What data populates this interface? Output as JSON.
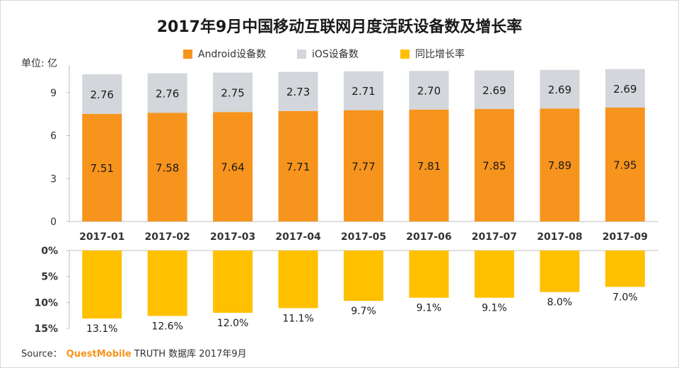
{
  "title": "2017年9月中国移动互联网月度活跃设备数及增长率",
  "unit_label": "单位: 亿",
  "legend": [
    {
      "label": "Android设备数",
      "color": "#f7941d"
    },
    {
      "label": "iOS设备数",
      "color": "#d3d6db"
    },
    {
      "label": "同比增长率",
      "color": "#ffc000"
    }
  ],
  "source": {
    "prefix": "Source：",
    "brand": "QuestMobile",
    "suffix": "TRUTH 数据库 2017年9月"
  },
  "chart_data": [
    {
      "type": "bar",
      "stacked": true,
      "categories": [
        "2017-01",
        "2017-02",
        "2017-03",
        "2017-04",
        "2017-05",
        "2017-06",
        "2017-07",
        "2017-08",
        "2017-09"
      ],
      "series": [
        {
          "name": "Android设备数",
          "color": "#f7941d",
          "values": [
            7.51,
            7.58,
            7.64,
            7.71,
            7.77,
            7.81,
            7.85,
            7.89,
            7.95
          ]
        },
        {
          "name": "iOS设备数",
          "color": "#d3d6db",
          "values": [
            2.76,
            2.76,
            2.75,
            2.73,
            2.71,
            2.7,
            2.69,
            2.69,
            2.69
          ]
        }
      ],
      "ylabel": "单位: 亿",
      "ylim": [
        0,
        10.8
      ],
      "yticks": [
        0,
        3,
        6,
        9
      ],
      "ytick_labels": [
        "0",
        "3",
        "6",
        "9"
      ],
      "grid": false
    },
    {
      "type": "bar",
      "categories": [
        "2017-01",
        "2017-02",
        "2017-03",
        "2017-04",
        "2017-05",
        "2017-06",
        "2017-07",
        "2017-08",
        "2017-09"
      ],
      "series": [
        {
          "name": "同比增长率",
          "color": "#ffc000",
          "values": [
            13.1,
            12.6,
            12.0,
            11.1,
            9.7,
            9.1,
            9.1,
            8.0,
            7.0
          ],
          "value_labels": [
            "13.1%",
            "12.6%",
            "12.0%",
            "11.1%",
            "9.7%",
            "9.1%",
            "9.1%",
            "8.0%",
            "7.0%"
          ]
        }
      ],
      "yaxis_inverted": true,
      "ylim": [
        0,
        15
      ],
      "yticks": [
        0,
        5,
        10,
        15
      ],
      "ytick_labels": [
        "0%",
        "5%",
        "10%",
        "15%"
      ],
      "grid": false
    }
  ]
}
